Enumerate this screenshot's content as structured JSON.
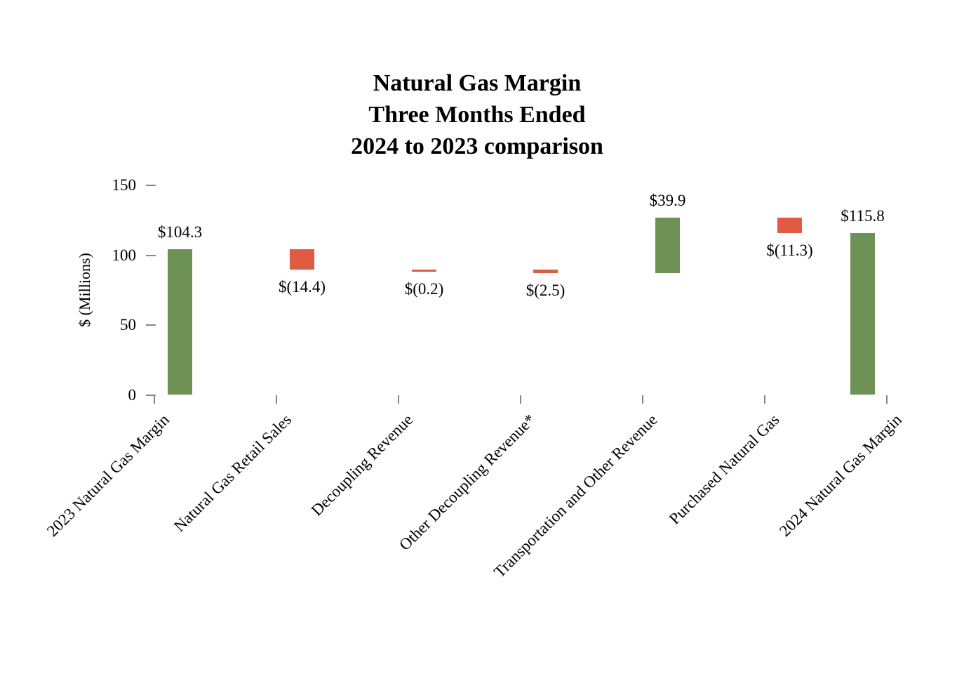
{
  "title": {
    "lines": [
      "Natural Gas Margin",
      "Three Months Ended",
      "2024 to 2023 comparison"
    ]
  },
  "y_axis": {
    "title": "$ (Millions)",
    "tick_labels": [
      "0",
      "50",
      "100",
      "150"
    ],
    "tick_values": [
      0,
      50,
      100,
      150
    ]
  },
  "colors": {
    "increase_green": "#6e9155",
    "decrease_red": "#e05b43",
    "axis_gray": "#868686",
    "text": "#000000"
  },
  "chart_data": {
    "type": "bar",
    "subtype": "waterfall",
    "title": "Natural Gas Margin Three Months Ended 2024 to 2023 comparison",
    "xlabel": "",
    "ylabel": "$ (Millions)",
    "ylim": [
      0,
      150
    ],
    "grid": false,
    "legend": false,
    "categories": [
      "2023 Natural Gas Margin",
      "Natural Gas Retail Sales",
      "Decoupling Revenue",
      "Other Decoupling Revenue*",
      "Transportation and Other Revenue",
      "Purchased Natural Gas",
      "2024 Natural Gas Margin"
    ],
    "bars": [
      {
        "category": "2023 Natural Gas Margin",
        "start": 0,
        "end": 104.3,
        "delta": 104.3,
        "label": "$104.3",
        "color": "green",
        "label_position": "above"
      },
      {
        "category": "Natural Gas Retail Sales",
        "start": 104.3,
        "end": 89.9,
        "delta": -14.4,
        "label": "$(14.4)",
        "color": "red",
        "label_position": "below"
      },
      {
        "category": "Decoupling Revenue",
        "start": 89.9,
        "end": 89.7,
        "delta": -0.2,
        "label": "$(0.2)",
        "color": "red",
        "label_position": "below"
      },
      {
        "category": "Other Decoupling Revenue*",
        "start": 89.7,
        "end": 87.2,
        "delta": -2.5,
        "label": "$(2.5)",
        "color": "red",
        "label_position": "below"
      },
      {
        "category": "Transportation and Other Revenue",
        "start": 87.2,
        "end": 127.1,
        "delta": 39.9,
        "label": "$39.9",
        "color": "green",
        "label_position": "above"
      },
      {
        "category": "Purchased Natural Gas",
        "start": 127.1,
        "end": 115.8,
        "delta": -11.3,
        "label": "$(11.3)",
        "color": "red",
        "label_position": "below"
      },
      {
        "category": "2024 Natural Gas Margin",
        "start": 0,
        "end": 115.8,
        "delta": 115.8,
        "label": "$115.8",
        "color": "green",
        "label_position": "above"
      }
    ]
  }
}
